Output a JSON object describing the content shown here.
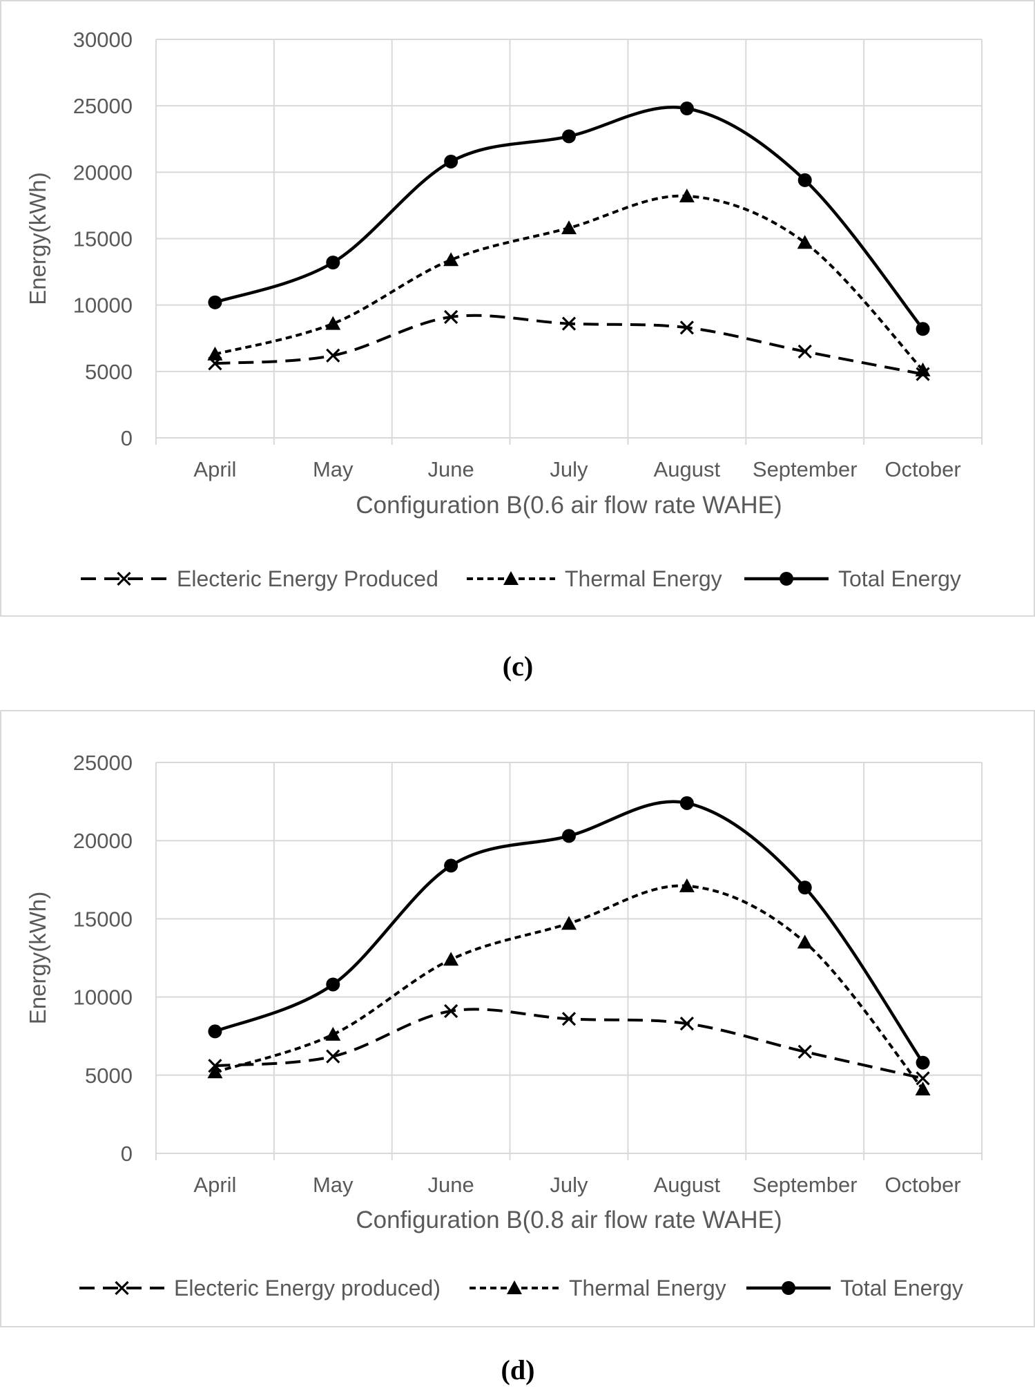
{
  "chart_data": [
    {
      "type": "line",
      "panel_label": "(c)",
      "title": "",
      "xlabel": "Configuration B(0.6 air flow rate WAHE)",
      "ylabel": "Energy(kWh)",
      "ylim": [
        0,
        30000
      ],
      "yticks": [
        "0",
        "5000",
        "10000",
        "15000",
        "20000",
        "25000",
        "30000"
      ],
      "categories": [
        "April",
        "May",
        "June",
        "July",
        "August",
        "September",
        "October"
      ],
      "grid": true,
      "legend_position": "bottom",
      "series": [
        {
          "name": "Electeric Energy Produced",
          "marker": "x",
          "line": "dashed",
          "values": [
            5600,
            6200,
            9100,
            8600,
            8300,
            6500,
            4800
          ]
        },
        {
          "name": "Thermal Energy",
          "marker": "triangle",
          "line": "dotted",
          "values": [
            6300,
            8600,
            13400,
            15800,
            18200,
            14700,
            5100
          ]
        },
        {
          "name": "Total Energy",
          "marker": "circle",
          "line": "solid",
          "values": [
            10200,
            13200,
            20800,
            22700,
            24800,
            19400,
            8200
          ]
        }
      ]
    },
    {
      "type": "line",
      "panel_label": "(d)",
      "title": "",
      "xlabel": "Configuration B(0.8 air flow rate WAHE)",
      "ylabel": "Energy(kWh)",
      "ylim": [
        0,
        25000
      ],
      "yticks": [
        "0",
        "5000",
        "10000",
        "15000",
        "20000",
        "25000"
      ],
      "categories": [
        "April",
        "May",
        "June",
        "July",
        "August",
        "September",
        "October"
      ],
      "grid": true,
      "legend_position": "bottom",
      "series": [
        {
          "name": "Electeric Energy produced)",
          "marker": "x",
          "line": "dashed",
          "values": [
            5600,
            6200,
            9100,
            8600,
            8300,
            6500,
            4800
          ]
        },
        {
          "name": "Thermal Energy",
          "marker": "triangle",
          "line": "dotted",
          "values": [
            5200,
            7600,
            12400,
            14700,
            17100,
            13500,
            4100
          ]
        },
        {
          "name": "Total Energy",
          "marker": "circle",
          "line": "solid",
          "values": [
            7800,
            10800,
            18400,
            20300,
            22400,
            17000,
            5800
          ]
        }
      ]
    }
  ]
}
